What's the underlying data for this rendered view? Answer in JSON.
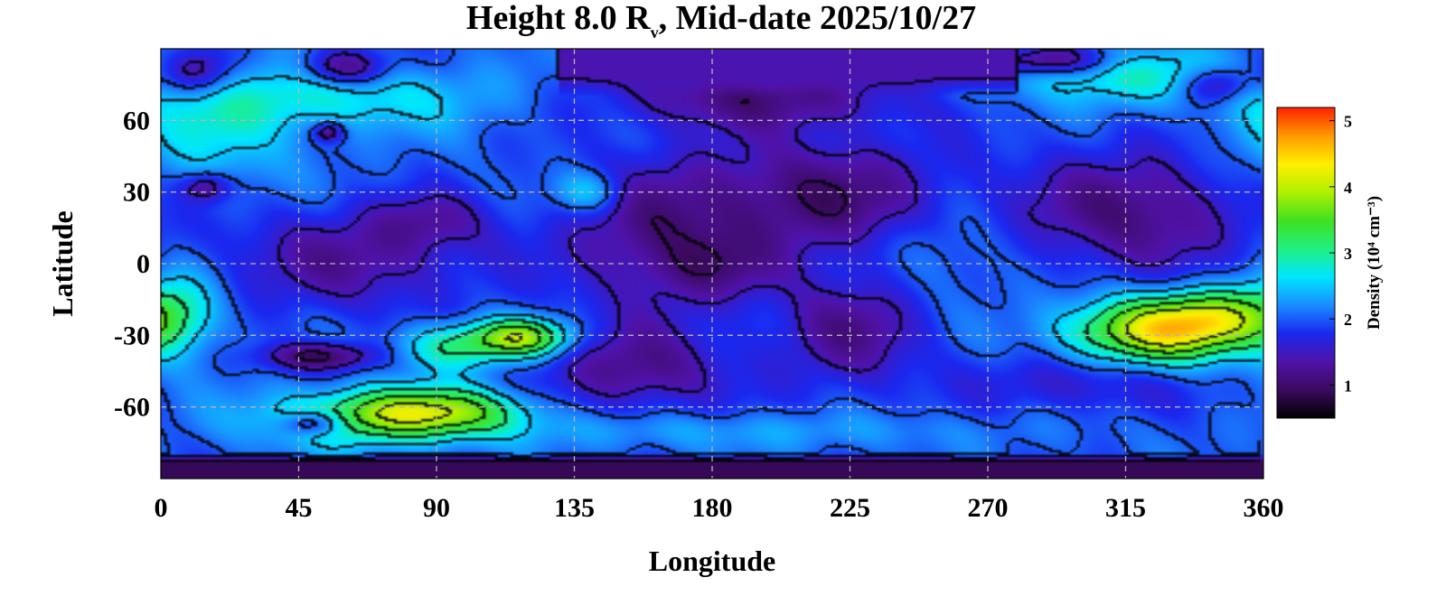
{
  "chart_data": {
    "type": "heatmap",
    "title": {
      "prefix": "Height 8.0 R",
      "subscript": "v",
      "suffix": ", Mid-date 2025/10/27"
    },
    "xlabel": "Longitude",
    "ylabel": "Latitude",
    "xlim": [
      0,
      360
    ],
    "ylim": [
      -90,
      90
    ],
    "xticks": [
      0,
      45,
      90,
      135,
      180,
      225,
      270,
      315,
      360
    ],
    "yticks": [
      60,
      30,
      0,
      -30,
      -60
    ],
    "xtick_labels": [
      "0",
      "45",
      "90",
      "135",
      "180",
      "225",
      "270",
      "315",
      "360"
    ],
    "ytick_labels": [
      "60",
      "30",
      "0",
      "-30",
      "-60"
    ],
    "grid": true,
    "colorbar": {
      "label": "Density (10⁴ cm⁻³)",
      "range": [
        0.5,
        5.2
      ],
      "ticks": [
        1,
        2,
        3,
        4,
        5
      ],
      "tick_labels": [
        "1",
        "2",
        "3",
        "4",
        "5"
      ],
      "colormap": [
        "#000000",
        "#3a0a5e",
        "#5012a8",
        "#1a28f0",
        "#1a8cff",
        "#00e6ff",
        "#20f080",
        "#40e020",
        "#b0f000",
        "#ffee00",
        "#ff9a00",
        "#ff2000"
      ]
    },
    "contour_levels": [
      1,
      1.5,
      2,
      2.5,
      3,
      3.5,
      4
    ],
    "field": {
      "background": 2.0,
      "features": [
        {
          "lon": 62,
          "lat": 2,
          "slon": 42,
          "slat": 22,
          "amp": -0.7
        },
        {
          "lon": 88,
          "lat": 18,
          "slon": 20,
          "slat": 12,
          "amp": -0.45
        },
        {
          "lon": 195,
          "lat": 70,
          "slon": 48,
          "slat": 14,
          "amp": -0.85
        },
        {
          "lon": 215,
          "lat": 28,
          "slon": 42,
          "slat": 24,
          "amp": -0.95
        },
        {
          "lon": 160,
          "lat": 10,
          "slon": 30,
          "slat": 32,
          "amp": -0.75
        },
        {
          "lon": 182,
          "lat": -2,
          "slon": 20,
          "slat": 14,
          "amp": -0.45
        },
        {
          "lon": 155,
          "lat": -45,
          "slon": 30,
          "slat": 18,
          "amp": -0.8
        },
        {
          "lon": 225,
          "lat": -28,
          "slon": 25,
          "slat": 25,
          "amp": -0.75
        },
        {
          "lon": 318,
          "lat": 22,
          "slon": 38,
          "slat": 26,
          "amp": -0.9
        },
        {
          "lon": 255,
          "lat": 6,
          "slon": 22,
          "slat": 20,
          "amp": 0.35
        },
        {
          "lon": 0,
          "lat": 0,
          "slon": 90,
          "slat": 5,
          "amp": 0.0
        },
        {
          "lon": 140,
          "lat": 30,
          "slon": 11,
          "slat": 9,
          "amp": 0.75
        },
        {
          "lon": 15,
          "lat": 55,
          "slon": 30,
          "slat": 28,
          "amp": 0.6
        },
        {
          "lon": 60,
          "lat": 70,
          "slon": 50,
          "slat": 14,
          "amp": 0.7
        },
        {
          "lon": 5,
          "lat": -20,
          "slon": 14,
          "slat": 18,
          "amp": 0.9
        },
        {
          "lon": 90,
          "lat": -62,
          "slon": 30,
          "slat": 10,
          "amp": 1.7
        },
        {
          "lon": 60,
          "lat": -65,
          "slon": 32,
          "slat": 12,
          "amp": 0.9
        },
        {
          "lon": 118,
          "lat": -31,
          "slon": 16,
          "slat": 8,
          "amp": 1.8
        },
        {
          "lon": 95,
          "lat": -35,
          "slon": 18,
          "slat": 10,
          "amp": 1.0
        },
        {
          "lon": 325,
          "lat": -28,
          "slon": 28,
          "slat": 14,
          "amp": 2.2
        },
        {
          "lon": 345,
          "lat": -22,
          "slon": 18,
          "slat": 12,
          "amp": 1.1
        },
        {
          "lon": 52,
          "lat": -39,
          "slon": 18,
          "slat": 6,
          "amp": -1.1
        },
        {
          "lon": 50,
          "lat": -67,
          "slon": 10,
          "slat": 5,
          "amp": -1.1
        },
        {
          "lon": 12,
          "lat": 80,
          "slon": 12,
          "slat": 10,
          "amp": -1.0
        },
        {
          "lon": 60,
          "lat": 82,
          "slon": 14,
          "slat": 8,
          "amp": -1.1
        },
        {
          "lon": 15,
          "lat": 32,
          "slon": 8,
          "slat": 6,
          "amp": -0.8
        },
        {
          "lon": 55,
          "lat": 55,
          "slon": 5,
          "slat": 4,
          "amp": -0.9
        },
        {
          "lon": 315,
          "lat": 78,
          "slon": 40,
          "slat": 12,
          "amp": 0.8
        },
        {
          "lon": 290,
          "lat": 85,
          "slon": 20,
          "slat": 6,
          "amp": -1.0
        },
        {
          "lon": 345,
          "lat": 75,
          "slon": 12,
          "slat": 8,
          "amp": -1.0
        },
        {
          "lon": 300,
          "lat": -50,
          "slon": 35,
          "slat": 12,
          "amp": -0.5
        },
        {
          "lon": 180,
          "lat": -70,
          "slon": 90,
          "slat": 8,
          "amp": 0.35
        }
      ],
      "polar_south": {
        "lat_from": -80,
        "value": 0.9
      },
      "polar_north_gap": {
        "lon_from": 130,
        "lon_to": 280,
        "lat_from": 70,
        "value": 1.4
      }
    }
  }
}
